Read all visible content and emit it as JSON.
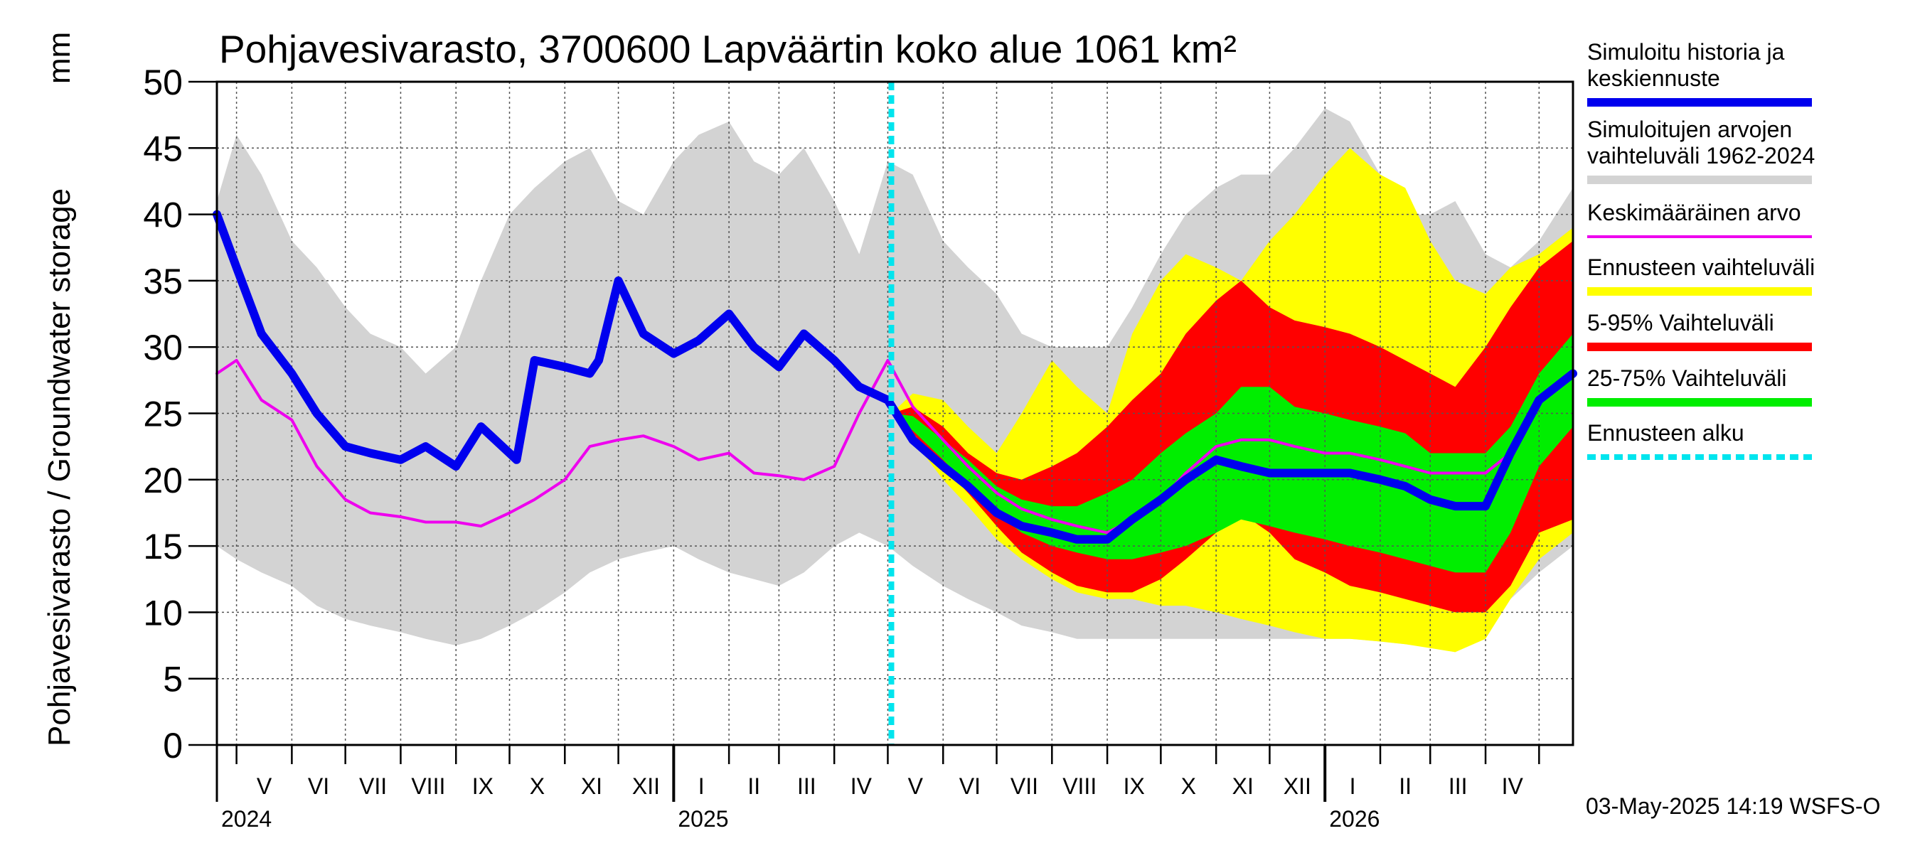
{
  "chart_data": {
    "type": "area",
    "title": "Pohjavesivarasto, 3700600 Lapväärtin koko alue 1061 km²",
    "ylabel": "Pohjavesivarasto / Groundwater storage",
    "yunit": "mm",
    "ylim": [
      0,
      50
    ],
    "yticks": [
      "0",
      "5",
      "10",
      "15",
      "20",
      "25",
      "30",
      "35",
      "40",
      "45",
      "50"
    ],
    "grid": true,
    "xstart": "2024-04-20",
    "xend": "2026-05-20",
    "forecast_start": "2025-05-03",
    "months": [
      {
        "label": "V",
        "start": "2024-05-01"
      },
      {
        "label": "VI",
        "start": "2024-06-01"
      },
      {
        "label": "VII",
        "start": "2024-07-01"
      },
      {
        "label": "VIII",
        "start": "2024-08-01"
      },
      {
        "label": "IX",
        "start": "2024-09-01"
      },
      {
        "label": "X",
        "start": "2024-10-01"
      },
      {
        "label": "XI",
        "start": "2024-11-01"
      },
      {
        "label": "XII",
        "start": "2024-12-01"
      },
      {
        "label": "I",
        "start": "2025-01-01"
      },
      {
        "label": "II",
        "start": "2025-02-01"
      },
      {
        "label": "III",
        "start": "2025-03-01"
      },
      {
        "label": "IV",
        "start": "2025-04-01"
      },
      {
        "label": "V",
        "start": "2025-05-01"
      },
      {
        "label": "VI",
        "start": "2025-06-01"
      },
      {
        "label": "VII",
        "start": "2025-07-01"
      },
      {
        "label": "VIII",
        "start": "2025-08-01"
      },
      {
        "label": "IX",
        "start": "2025-09-01"
      },
      {
        "label": "X",
        "start": "2025-10-01"
      },
      {
        "label": "XI",
        "start": "2025-11-01"
      },
      {
        "label": "XII",
        "start": "2025-12-01"
      },
      {
        "label": "I",
        "start": "2026-01-01"
      },
      {
        "label": "II",
        "start": "2026-02-01"
      },
      {
        "label": "III",
        "start": "2026-03-01"
      },
      {
        "label": "IV",
        "start": "2026-04-01"
      },
      {
        "label": "",
        "start": "2026-05-01"
      }
    ],
    "years": [
      {
        "label": "2024",
        "at": "2024-04-20"
      },
      {
        "label": "2025",
        "at": "2025-01-01"
      },
      {
        "label": "2026",
        "at": "2026-01-01"
      }
    ],
    "colors": {
      "simulated": "#0000ee",
      "hist_range": "#d3d3d3",
      "mean": "#ee00ee",
      "forecast_range": "#ffff00",
      "p5_95": "#ff0000",
      "p25_75": "#00ee00",
      "forecast_start": "#00e5ee"
    },
    "series": [
      {
        "name": "Simuloitujen arvojen vaihteluväli 1962-2024",
        "kind": "band",
        "color": "#d3d3d3",
        "x": [
          "2024-04-20",
          "2024-05-01",
          "2024-05-15",
          "2024-06-01",
          "2024-06-15",
          "2024-07-01",
          "2024-07-15",
          "2024-08-01",
          "2024-08-15",
          "2024-09-01",
          "2024-09-15",
          "2024-10-01",
          "2024-10-15",
          "2024-11-01",
          "2024-11-15",
          "2024-12-01",
          "2024-12-15",
          "2025-01-01",
          "2025-01-15",
          "2025-02-01",
          "2025-02-15",
          "2025-03-01",
          "2025-03-15",
          "2025-04-01",
          "2025-04-15",
          "2025-05-01",
          "2025-05-15",
          "2025-06-01",
          "2025-06-15",
          "2025-07-01",
          "2025-07-15",
          "2025-08-01",
          "2025-08-15",
          "2025-09-01",
          "2025-09-15",
          "2025-10-01",
          "2025-10-15",
          "2025-11-01",
          "2025-11-15",
          "2025-12-01",
          "2025-12-15",
          "2026-01-01",
          "2026-01-15",
          "2026-02-01",
          "2026-02-15",
          "2026-03-01",
          "2026-03-15",
          "2026-04-01",
          "2026-04-15",
          "2026-05-01",
          "2026-05-20"
        ],
        "low": [
          15,
          14,
          13,
          12,
          10.5,
          9.5,
          9,
          8.5,
          8,
          7.5,
          8,
          9,
          10,
          11.5,
          13,
          14,
          14.5,
          15,
          14,
          13,
          12.5,
          12,
          13,
          15,
          16,
          15,
          13.5,
          12,
          11,
          10,
          9,
          8.5,
          8,
          8,
          8,
          8,
          8,
          8,
          8,
          8,
          8,
          8,
          8,
          7.8,
          7.6,
          7.4,
          7,
          9,
          11,
          13,
          15
        ],
        "high": [
          41,
          46,
          43,
          38,
          36,
          33,
          31,
          30,
          28,
          30,
          35,
          40,
          42,
          44,
          45,
          41,
          40,
          44,
          46,
          47,
          44,
          43,
          45,
          41,
          37,
          44,
          43,
          38,
          36,
          34,
          31,
          30,
          30,
          30,
          33,
          37,
          40,
          42,
          43,
          43,
          45,
          48,
          47,
          43,
          40,
          40,
          41,
          37,
          36,
          38,
          42
        ]
      },
      {
        "name": "Ennusteen vaihteluväli",
        "kind": "band",
        "color": "#ffff00",
        "x": [
          "2025-05-03",
          "2025-05-15",
          "2025-06-01",
          "2025-06-15",
          "2025-07-01",
          "2025-07-15",
          "2025-08-01",
          "2025-08-15",
          "2025-09-01",
          "2025-09-15",
          "2025-10-01",
          "2025-10-15",
          "2025-11-01",
          "2025-11-15",
          "2025-12-01",
          "2025-12-15",
          "2026-01-01",
          "2026-01-15",
          "2026-02-01",
          "2026-02-15",
          "2026-03-01",
          "2026-03-15",
          "2026-04-01",
          "2026-04-15",
          "2026-05-01",
          "2026-05-20"
        ],
        "low": [
          25,
          23,
          20,
          18,
          15.5,
          14,
          12.5,
          11.5,
          11,
          11,
          10.5,
          10.5,
          10,
          9.5,
          9,
          8.5,
          8,
          8,
          7.8,
          7.6,
          7.3,
          7,
          8,
          11,
          14,
          16
        ],
        "high": [
          25,
          26.5,
          26,
          24,
          22,
          25,
          29,
          27,
          25,
          31,
          35,
          37,
          36,
          35,
          38,
          40,
          43,
          45,
          43,
          42,
          38,
          35,
          34,
          36,
          37,
          39
        ]
      },
      {
        "name": "5-95% Vaihteluväli",
        "kind": "band",
        "color": "#ff0000",
        "x": [
          "2025-05-03",
          "2025-05-15",
          "2025-06-01",
          "2025-06-15",
          "2025-07-01",
          "2025-07-15",
          "2025-08-01",
          "2025-08-15",
          "2025-09-01",
          "2025-09-15",
          "2025-10-01",
          "2025-10-15",
          "2025-11-01",
          "2025-11-15",
          "2025-12-01",
          "2025-12-15",
          "2026-01-01",
          "2026-01-15",
          "2026-02-01",
          "2026-02-15",
          "2026-03-01",
          "2026-03-15",
          "2026-04-01",
          "2026-04-15",
          "2026-05-01",
          "2026-05-20"
        ],
        "low": [
          25,
          23.5,
          21,
          19,
          16.5,
          14.5,
          13,
          12,
          11.5,
          11.5,
          12.5,
          14,
          16,
          17.5,
          16,
          14,
          13,
          12,
          11.5,
          11,
          10.5,
          10,
          10,
          12,
          16,
          17
        ],
        "high": [
          25,
          25.5,
          24,
          22,
          20.5,
          20,
          21,
          22,
          24,
          26,
          28,
          31,
          33.5,
          35,
          33,
          32,
          31.5,
          31,
          30,
          29,
          28,
          27,
          30,
          33,
          36,
          38
        ]
      },
      {
        "name": "25-75% Vaihteluväli",
        "kind": "band",
        "color": "#00ee00",
        "x": [
          "2025-05-03",
          "2025-05-15",
          "2025-06-01",
          "2025-06-15",
          "2025-07-01",
          "2025-07-15",
          "2025-08-01",
          "2025-08-15",
          "2025-09-01",
          "2025-09-15",
          "2025-10-01",
          "2025-10-15",
          "2025-11-01",
          "2025-11-15",
          "2025-12-01",
          "2025-12-15",
          "2026-01-01",
          "2026-01-15",
          "2026-02-01",
          "2026-02-15",
          "2026-03-01",
          "2026-03-15",
          "2026-04-01",
          "2026-04-15",
          "2026-05-01",
          "2026-05-20"
        ],
        "low": [
          25,
          23.7,
          21.5,
          19.5,
          17.5,
          16,
          15,
          14.5,
          14,
          14,
          14.5,
          15,
          16,
          17,
          16.5,
          16,
          15.5,
          15,
          14.5,
          14,
          13.5,
          13,
          13,
          16,
          21,
          24
        ],
        "high": [
          25,
          24.8,
          23,
          21.5,
          19.5,
          18.5,
          18,
          18,
          19,
          20,
          22,
          23.5,
          25,
          27,
          27,
          25.5,
          25,
          24.5,
          24,
          23.5,
          22,
          22,
          22,
          24,
          28,
          31
        ]
      },
      {
        "name": "Keskimääräinen arvo",
        "kind": "line",
        "color": "#ee00ee",
        "x": [
          "2024-04-20",
          "2024-05-01",
          "2024-05-15",
          "2024-06-01",
          "2024-06-15",
          "2024-07-01",
          "2024-07-15",
          "2024-08-01",
          "2024-08-15",
          "2024-09-01",
          "2024-09-15",
          "2024-10-01",
          "2024-10-15",
          "2024-11-01",
          "2024-11-15",
          "2024-12-01",
          "2024-12-15",
          "2025-01-01",
          "2025-01-15",
          "2025-02-01",
          "2025-02-15",
          "2025-03-01",
          "2025-03-15",
          "2025-04-01",
          "2025-04-15",
          "2025-05-01",
          "2025-05-15",
          "2025-06-01",
          "2025-06-15",
          "2025-07-01",
          "2025-07-15",
          "2025-08-01",
          "2025-08-15",
          "2025-09-01",
          "2025-09-15",
          "2025-10-01",
          "2025-10-15",
          "2025-11-01",
          "2025-11-15",
          "2025-12-01",
          "2025-12-15",
          "2026-01-01",
          "2026-01-15",
          "2026-02-01",
          "2026-02-15",
          "2026-03-01",
          "2026-03-15",
          "2026-04-01",
          "2026-04-15",
          "2026-05-01",
          "2026-05-20"
        ],
        "values": [
          28,
          29,
          26,
          24.5,
          21,
          18.5,
          17.5,
          17.2,
          16.8,
          16.8,
          16.5,
          17.5,
          18.5,
          20,
          22.5,
          23,
          23.3,
          22.5,
          21.5,
          22,
          20.5,
          20.3,
          20,
          21,
          25,
          29,
          25.5,
          23,
          21,
          19,
          17.8,
          17,
          16.5,
          16,
          17,
          18.5,
          20.5,
          22.5,
          23,
          23,
          22.5,
          22,
          22,
          21.5,
          21,
          20.5,
          20.5,
          20.5,
          22,
          26,
          28
        ]
      },
      {
        "name": "Simuloitu historia ja keskiennuste",
        "kind": "line",
        "color": "#0000ee",
        "x": [
          "2024-04-20",
          "2024-05-01",
          "2024-05-15",
          "2024-06-01",
          "2024-06-15",
          "2024-07-01",
          "2024-07-15",
          "2024-08-01",
          "2024-08-15",
          "2024-09-01",
          "2024-09-15",
          "2024-10-01",
          "2024-10-05",
          "2024-10-15",
          "2024-11-01",
          "2024-11-15",
          "2024-11-20",
          "2024-12-01",
          "2024-12-15",
          "2025-01-01",
          "2025-01-15",
          "2025-02-01",
          "2025-02-15",
          "2025-03-01",
          "2025-03-15",
          "2025-04-01",
          "2025-04-15",
          "2025-05-01",
          "2025-05-15",
          "2025-06-01",
          "2025-06-15",
          "2025-07-01",
          "2025-07-15",
          "2025-08-01",
          "2025-08-15",
          "2025-09-01",
          "2025-09-15",
          "2025-10-01",
          "2025-10-15",
          "2025-11-01",
          "2025-11-15",
          "2025-12-01",
          "2025-12-15",
          "2026-01-01",
          "2026-01-15",
          "2026-02-01",
          "2026-02-15",
          "2026-03-01",
          "2026-03-15",
          "2026-04-01",
          "2026-04-15",
          "2026-05-01",
          "2026-05-20"
        ],
        "values": [
          40,
          36,
          31,
          28,
          25,
          22.5,
          22,
          21.5,
          22.5,
          21,
          24,
          22,
          21.5,
          29,
          28.5,
          28,
          29,
          35,
          31,
          29.5,
          30.5,
          32.5,
          30,
          28.5,
          31,
          29,
          27,
          26,
          23,
          21,
          19.5,
          17.5,
          16.5,
          16,
          15.5,
          15.5,
          17,
          18.5,
          20,
          21.5,
          21,
          20.5,
          20.5,
          20.5,
          20.5,
          20,
          19.5,
          18.5,
          18,
          18,
          22,
          26,
          28
        ]
      }
    ]
  },
  "legend": [
    {
      "label": "Simuloitu historia ja keskiennuste",
      "color": "#0000ee",
      "style": "line"
    },
    {
      "label": "Simuloitujen arvojen vaihteluväli 1962-2024",
      "color": "#d3d3d3",
      "style": "line"
    },
    {
      "label": "Keskimääräinen arvo",
      "color": "#ee00ee",
      "style": "thin"
    },
    {
      "label": "Ennusteen vaihteluväli",
      "color": "#ffff00",
      "style": "line"
    },
    {
      "label": "5-95% Vaihteluväli",
      "color": "#ff0000",
      "style": "line"
    },
    {
      "label": "25-75% Vaihteluväli",
      "color": "#00ee00",
      "style": "line"
    },
    {
      "label": "Ennusteen alku",
      "color": "#00e5ee",
      "style": "dashed"
    }
  ],
  "legend_lines": {
    "l0": [
      "Simuloitu historia ja",
      "keskiennuste"
    ],
    "l1": [
      "Simuloitujen arvojen",
      "vaihteluväli 1962-2024"
    ],
    "l2": [
      "Keskimääräinen arvo"
    ],
    "l3": [
      "Ennusteen vaihteluväli"
    ],
    "l4": [
      "5-95% Vaihteluväli"
    ],
    "l5": [
      "25-75% Vaihteluväli"
    ],
    "l6": [
      "Ennusteen alku"
    ]
  },
  "timestamp": "03-May-2025 14:19 WSFS-O"
}
